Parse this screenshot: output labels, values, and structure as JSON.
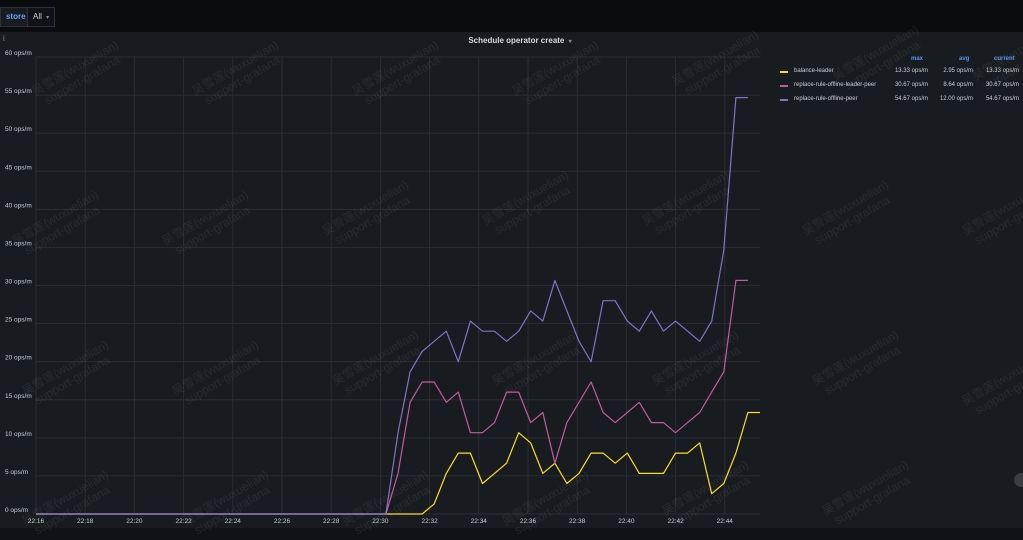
{
  "toolbar": {
    "variable_label": "store",
    "variable_value": "All"
  },
  "panel": {
    "info_icon": "info-icon",
    "title": "Schedule operator create"
  },
  "legend": {
    "headers": {
      "max": "max",
      "avg": "avg",
      "current": "current"
    },
    "items": [
      {
        "name": "balance-leader",
        "color": "#fade2a",
        "max": "13.33 ops/m",
        "avg": "2.95 ops/m",
        "current": "13.33 ops/m"
      },
      {
        "name": "replace-rule-offline-leader-peer",
        "color": "#c15c9e",
        "max": "30.67 ops/m",
        "avg": "8.64 ops/m",
        "current": "30.67 ops/m"
      },
      {
        "name": "replace-rule-offline-peer",
        "color": "#8073c8",
        "max": "54.67 ops/m",
        "avg": "12.00 ops/m",
        "current": "54.67 ops/m"
      }
    ]
  },
  "watermark_text": "吴雪莲(wuxuelian)\nsupport-grafana",
  "chart_data": {
    "type": "line",
    "title": "Schedule operator create",
    "x_ticks": [
      "22:16",
      "22:18",
      "22:20",
      "22:22",
      "22:24",
      "22:26",
      "22:28",
      "22:30",
      "22:32",
      "22:34",
      "22:36",
      "22:38",
      "22:40",
      "22:42",
      "22:44"
    ],
    "xlim": [
      22.16,
      22.46
    ],
    "y_ticks": [
      "0 ops/m",
      "5 ops/m",
      "10 ops/m",
      "15 ops/m",
      "20 ops/m",
      "25 ops/m",
      "30 ops/m",
      "35 ops/m",
      "40 ops/m",
      "45 ops/m",
      "50 ops/m",
      "55 ops/m",
      "60 ops/m"
    ],
    "ylim": [
      0,
      60
    ],
    "y_step": 5,
    "grid": true,
    "legend_position": "right",
    "series": [
      {
        "name": "balance-leader",
        "color": "#fade2a",
        "x": [
          22.16,
          22.31,
          22.32,
          22.325,
          22.33,
          22.335,
          22.34,
          22.345,
          22.35,
          22.355,
          22.36,
          22.365,
          22.37,
          22.375,
          22.38,
          22.385,
          22.39,
          22.395,
          22.4,
          22.405,
          22.41,
          22.415,
          22.42,
          22.425,
          22.43,
          22.435,
          22.44,
          22.445,
          22.45,
          22.455,
          22.46
        ],
        "y": [
          0,
          0,
          0,
          1.33,
          5.33,
          8,
          8,
          4,
          5.33,
          6.67,
          10.67,
          9.33,
          5.33,
          6.67,
          4,
          5.33,
          8,
          8,
          6.67,
          8,
          5.33,
          5.33,
          5.33,
          8,
          8,
          9.33,
          2.67,
          4,
          8,
          13.33,
          13.33
        ]
      },
      {
        "name": "replace-rule-offline-leader-peer",
        "color": "#c15c9e",
        "x": [
          22.16,
          22.305,
          22.31,
          22.315,
          22.32,
          22.325,
          22.33,
          22.335,
          22.34,
          22.345,
          22.35,
          22.355,
          22.36,
          22.365,
          22.37,
          22.375,
          22.38,
          22.385,
          22.39,
          22.395,
          22.4,
          22.405,
          22.41,
          22.415,
          22.42,
          22.425,
          22.43,
          22.435,
          22.44,
          22.445,
          22.45,
          22.455
        ],
        "y": [
          0,
          0,
          5.33,
          14.67,
          17.33,
          17.33,
          14.67,
          16,
          10.67,
          10.67,
          12,
          16,
          16,
          12,
          13.33,
          6.67,
          12,
          14.67,
          17.33,
          13.33,
          12,
          13.33,
          14.67,
          12,
          12,
          10.67,
          12,
          13.33,
          16,
          18.67,
          30.67,
          30.67
        ]
      },
      {
        "name": "replace-rule-offline-peer",
        "color": "#8073c8",
        "x": [
          22.16,
          22.305,
          22.31,
          22.315,
          22.32,
          22.325,
          22.33,
          22.335,
          22.34,
          22.345,
          22.35,
          22.355,
          22.36,
          22.365,
          22.37,
          22.375,
          22.38,
          22.385,
          22.39,
          22.395,
          22.4,
          22.405,
          22.41,
          22.415,
          22.42,
          22.425,
          22.43,
          22.435,
          22.44,
          22.445,
          22.45,
          22.455
        ],
        "y": [
          0,
          0,
          10.67,
          18.67,
          21.33,
          22.67,
          24,
          20,
          25.33,
          24,
          24,
          22.67,
          24,
          26.67,
          25.33,
          30.67,
          26.67,
          22.67,
          20,
          28,
          28,
          25.33,
          24,
          26.67,
          24,
          25.33,
          24,
          22.67,
          25.33,
          34.67,
          54.67,
          54.67
        ]
      }
    ]
  }
}
